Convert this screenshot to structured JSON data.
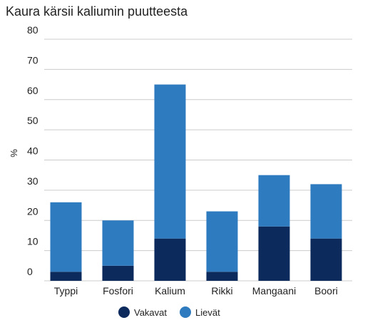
{
  "chart_data": {
    "type": "stacked_bar",
    "title": "Kaura kärsii kaliumin puutteesta",
    "y_label": "%",
    "categories": [
      "Typpi",
      "Fosfori",
      "Kalium",
      "Rikki",
      "Mangaani",
      "Boori"
    ],
    "series": [
      {
        "name": "Vakavat",
        "color": "#0c2a5c",
        "values": [
          3,
          5,
          14,
          3,
          18,
          14
        ]
      },
      {
        "name": "Lievät",
        "color": "#2e7bbf",
        "values": [
          23,
          15,
          51,
          20,
          17,
          18
        ]
      }
    ],
    "ylim": [
      0,
      80
    ],
    "yticks": [
      0,
      10,
      20,
      30,
      40,
      50,
      60,
      70,
      80
    ],
    "grid": true
  }
}
